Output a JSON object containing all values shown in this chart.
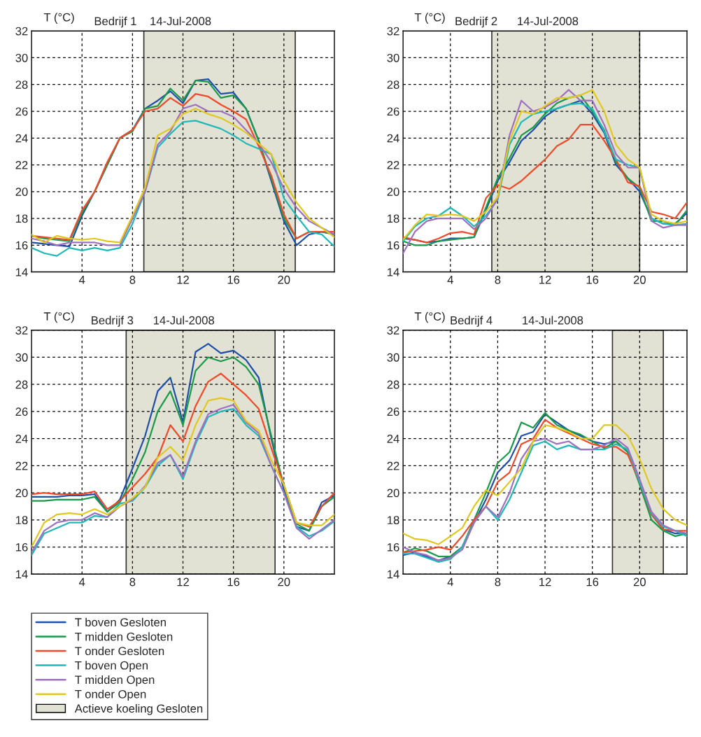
{
  "chart_data": [
    {
      "type": "line",
      "title": "Bedrijf 1    14-Jul-2008",
      "ylabel": "T (°C)",
      "x": [
        0,
        1,
        2,
        3,
        4,
        5,
        6,
        7,
        8,
        9,
        10,
        11,
        12,
        13,
        14,
        15,
        16,
        17,
        18,
        19,
        20,
        21,
        22,
        23,
        24
      ],
      "xlim": [
        0,
        24
      ],
      "ylim": [
        14,
        32
      ],
      "xticks": [
        4,
        8,
        12,
        16,
        20
      ],
      "yticks": [
        14,
        16,
        18,
        20,
        22,
        24,
        26,
        28,
        30,
        32
      ],
      "grid": true,
      "legend": "bottom",
      "marker": "none",
      "line_style": "solid",
      "bands": [
        {
          "axis": "x",
          "from": 8.9,
          "to": 20.9,
          "label": "Actieve koeling Gesloten",
          "color": "#e2e2d4"
        }
      ],
      "series": [
        {
          "name": "T boven Gesloten",
          "color": "#1f4fa8",
          "values": [
            16.2,
            16.1,
            16.0,
            15.9,
            18.2,
            20.0,
            22.0,
            24.0,
            24.6,
            26.2,
            26.8,
            27.5,
            26.6,
            28.3,
            28.4,
            27.3,
            27.4,
            26.2,
            23.8,
            20.8,
            17.8,
            16.0,
            16.8,
            17.0,
            16.8
          ]
        },
        {
          "name": "T midden Gesloten",
          "color": "#1a9a48",
          "values": [
            16.7,
            16.5,
            16.4,
            16.3,
            18.4,
            20.0,
            22.0,
            24.0,
            24.5,
            26.2,
            26.4,
            27.7,
            26.8,
            28.3,
            28.2,
            27.0,
            27.2,
            26.2,
            23.8,
            21.0,
            18.0,
            16.5,
            17.0,
            17.0,
            16.8
          ]
        },
        {
          "name": "T onder Gesloten",
          "color": "#f04a2a",
          "values": [
            16.7,
            16.6,
            16.5,
            16.4,
            18.6,
            20.0,
            22.2,
            24.0,
            24.6,
            26.0,
            26.2,
            27.0,
            26.4,
            27.3,
            27.1,
            26.5,
            26.0,
            25.4,
            23.4,
            21.2,
            18.3,
            16.5,
            17.0,
            17.0,
            17.0
          ]
        },
        {
          "name": "T boven Open",
          "color": "#20b8b8",
          "values": [
            15.8,
            15.4,
            15.2,
            15.8,
            15.6,
            15.8,
            15.6,
            15.8,
            17.6,
            20.0,
            23.3,
            24.3,
            25.2,
            25.3,
            25.0,
            24.7,
            24.2,
            23.6,
            23.2,
            22.8,
            19.5,
            18.2,
            17.0,
            16.8,
            15.9
          ]
        },
        {
          "name": "T midden Open",
          "color": "#a070c0",
          "values": [
            16.5,
            16.3,
            16.0,
            16.2,
            16.2,
            16.2,
            16.0,
            16.0,
            18.0,
            20.0,
            23.5,
            24.5,
            26.2,
            26.5,
            26.0,
            26.0,
            25.6,
            24.6,
            23.6,
            22.2,
            20.2,
            18.8,
            17.8,
            17.3,
            16.8
          ]
        },
        {
          "name": "T onder Open",
          "color": "#e0c820",
          "values": [
            16.8,
            16.2,
            16.7,
            16.5,
            16.4,
            16.5,
            16.3,
            16.2,
            18.2,
            20.3,
            24.2,
            24.7,
            25.8,
            26.2,
            25.8,
            25.5,
            25.0,
            24.4,
            23.6,
            22.8,
            20.8,
            19.2,
            18.0,
            17.3,
            16.6
          ]
        }
      ]
    },
    {
      "type": "line",
      "title": "Bedrijf 2      14-Jul-2008",
      "ylabel": "T (°C)",
      "x": [
        0,
        1,
        2,
        3,
        4,
        5,
        6,
        7,
        8,
        9,
        10,
        11,
        12,
        13,
        14,
        15,
        16,
        17,
        18,
        19,
        20,
        21,
        22,
        23,
        24
      ],
      "xlim": [
        0,
        24
      ],
      "ylim": [
        14,
        32
      ],
      "xticks": [
        4,
        8,
        12,
        16,
        20
      ],
      "yticks": [
        14,
        16,
        18,
        20,
        22,
        24,
        26,
        28,
        30,
        32
      ],
      "grid": true,
      "legend": false,
      "marker": "none",
      "line_style": "solid",
      "bands": [
        {
          "axis": "x",
          "from": 7.5,
          "to": 20,
          "color": "#e2e2d4"
        }
      ],
      "series": [
        {
          "color": "#1f4fa8",
          "values": [
            16.5,
            16.4,
            16.2,
            16.3,
            16.5,
            16.5,
            16.6,
            18.6,
            20.8,
            22.2,
            23.8,
            24.6,
            25.6,
            26.2,
            26.5,
            26.8,
            25.8,
            24.4,
            22.0,
            21.0,
            20.0,
            18.0,
            17.6,
            17.6,
            18.4
          ]
        },
        {
          "color": "#1a9a48",
          "values": [
            16.3,
            16.0,
            16.0,
            16.3,
            16.4,
            16.5,
            16.6,
            18.8,
            21.0,
            22.5,
            24.2,
            24.8,
            25.8,
            26.6,
            27.0,
            27.2,
            26.0,
            24.6,
            22.2,
            21.0,
            20.3,
            17.8,
            17.8,
            17.5,
            18.6
          ]
        },
        {
          "color": "#f04a2a",
          "values": [
            16.6,
            16.4,
            16.2,
            16.5,
            16.9,
            17.0,
            16.8,
            19.5,
            20.5,
            20.2,
            20.8,
            21.6,
            22.4,
            23.4,
            23.9,
            25.0,
            25.0,
            23.8,
            22.4,
            20.7,
            20.4,
            18.5,
            18.3,
            18.0,
            19.2
          ]
        },
        {
          "color": "#20b8b8",
          "values": [
            16.3,
            17.4,
            18.0,
            18.2,
            18.8,
            18.2,
            17.4,
            18.2,
            19.4,
            23.5,
            25.2,
            25.8,
            26.0,
            26.2,
            26.5,
            26.6,
            26.2,
            24.5,
            22.4,
            22.0,
            21.8,
            18.0,
            17.6,
            17.5,
            17.6
          ]
        },
        {
          "color": "#a070c0",
          "values": [
            15.4,
            17.0,
            17.8,
            18.0,
            18.0,
            18.0,
            17.2,
            18.0,
            19.5,
            24.2,
            26.8,
            26.0,
            26.3,
            26.8,
            27.6,
            26.8,
            26.8,
            25.0,
            22.8,
            21.8,
            21.8,
            17.8,
            17.3,
            17.5,
            17.5
          ]
        },
        {
          "color": "#e0c820",
          "values": [
            16.4,
            17.5,
            18.3,
            18.2,
            18.3,
            18.2,
            17.8,
            18.5,
            19.6,
            23.8,
            26.0,
            25.8,
            26.4,
            27.0,
            27.0,
            27.2,
            27.6,
            26.0,
            23.5,
            22.4,
            21.8,
            18.3,
            17.8,
            17.6,
            17.8
          ]
        }
      ]
    },
    {
      "type": "line",
      "title": "Bedrijf 3      14-Jul-2008",
      "ylabel": "T (°C)",
      "x": [
        0,
        1,
        2,
        3,
        4,
        5,
        6,
        7,
        8,
        9,
        10,
        11,
        12,
        13,
        14,
        15,
        16,
        17,
        18,
        19,
        20,
        21,
        22,
        23,
        24
      ],
      "xlim": [
        0,
        24
      ],
      "ylim": [
        14,
        32
      ],
      "xticks": [
        4,
        8,
        12,
        16,
        20
      ],
      "yticks": [
        14,
        16,
        18,
        20,
        22,
        24,
        26,
        28,
        30,
        32
      ],
      "grid": true,
      "legend": false,
      "marker": "none",
      "line_style": "solid",
      "bands": [
        {
          "axis": "x",
          "from": 7.5,
          "to": 19.3,
          "color": "#e2e2d4"
        }
      ],
      "series": [
        {
          "color": "#1f4fa8",
          "values": [
            19.7,
            19.7,
            19.7,
            19.8,
            19.8,
            19.9,
            18.6,
            19.5,
            21.8,
            24.2,
            27.5,
            28.5,
            25.2,
            30.4,
            31.0,
            30.3,
            30.5,
            29.8,
            28.5,
            24.0,
            20.2,
            17.5,
            17.2,
            19.3,
            19.8
          ]
        },
        {
          "color": "#1a9a48",
          "values": [
            19.4,
            19.4,
            19.5,
            19.5,
            19.5,
            19.7,
            18.6,
            19.3,
            21.0,
            23.0,
            26.0,
            27.5,
            25.0,
            29.0,
            30.0,
            29.7,
            30.0,
            29.3,
            28.0,
            24.2,
            20.5,
            17.7,
            17.2,
            19.0,
            19.7
          ]
        },
        {
          "color": "#f04a2a",
          "values": [
            19.9,
            20.0,
            19.9,
            19.9,
            19.9,
            20.1,
            18.8,
            19.4,
            20.4,
            21.4,
            22.6,
            25.0,
            23.8,
            26.4,
            28.2,
            28.8,
            28.0,
            27.2,
            26.2,
            23.3,
            20.6,
            17.8,
            17.5,
            19.0,
            20.0
          ]
        },
        {
          "color": "#20b8b8",
          "values": [
            15.4,
            17.0,
            17.4,
            17.8,
            17.8,
            18.3,
            18.2,
            19.2,
            19.4,
            20.4,
            22.0,
            22.8,
            21.0,
            23.6,
            25.6,
            26.0,
            26.2,
            25.0,
            24.2,
            22.0,
            20.0,
            17.5,
            16.8,
            17.2,
            17.9
          ]
        },
        {
          "color": "#a070c0",
          "values": [
            15.6,
            17.2,
            17.8,
            18.0,
            18.0,
            18.5,
            18.2,
            19.0,
            19.5,
            20.5,
            22.2,
            22.8,
            21.2,
            23.8,
            25.8,
            26.2,
            26.5,
            25.2,
            24.4,
            22.0,
            20.0,
            17.4,
            16.6,
            17.3,
            18.0
          ]
        },
        {
          "color": "#e0c820",
          "values": [
            16.0,
            17.8,
            18.4,
            18.5,
            18.4,
            18.8,
            18.4,
            19.0,
            19.6,
            20.4,
            22.6,
            23.4,
            22.4,
            25.0,
            26.8,
            27.0,
            26.8,
            25.3,
            24.6,
            22.4,
            20.6,
            17.8,
            17.6,
            17.6,
            18.4
          ]
        }
      ]
    },
    {
      "type": "line",
      "title": "Bedrijf 4         14-Jul-2008",
      "ylabel": "T (°C)",
      "x": [
        0,
        1,
        2,
        3,
        4,
        5,
        6,
        7,
        8,
        9,
        10,
        11,
        12,
        13,
        14,
        15,
        16,
        17,
        18,
        19,
        20,
        21,
        22,
        23,
        24
      ],
      "xlim": [
        0,
        24
      ],
      "ylim": [
        14,
        32
      ],
      "xticks": [
        4,
        8,
        12,
        16,
        20
      ],
      "yticks": [
        14,
        16,
        18,
        20,
        22,
        24,
        26,
        28,
        30,
        32
      ],
      "grid": true,
      "legend": false,
      "marker": "none",
      "line_style": "solid",
      "bands": [
        {
          "axis": "x",
          "from": 17.7,
          "to": 22,
          "color": "#e2e2d4"
        }
      ],
      "series": [
        {
          "color": "#1f4fa8",
          "values": [
            15.4,
            15.6,
            15.3,
            15.0,
            15.3,
            16.0,
            17.8,
            19.5,
            21.5,
            22.4,
            24.2,
            24.5,
            25.8,
            25.2,
            24.6,
            24.2,
            23.8,
            23.6,
            23.8,
            23.0,
            20.8,
            18.4,
            17.3,
            17.0,
            17.0
          ]
        },
        {
          "color": "#1a9a48",
          "values": [
            15.6,
            15.9,
            15.7,
            15.3,
            15.3,
            16.0,
            18.0,
            20.0,
            22.2,
            23.0,
            25.2,
            24.8,
            25.9,
            25.0,
            24.6,
            24.3,
            23.8,
            23.3,
            23.8,
            23.0,
            20.6,
            18.0,
            17.2,
            16.8,
            17.0
          ]
        },
        {
          "color": "#f04a2a",
          "values": [
            15.6,
            15.7,
            15.8,
            16.0,
            15.8,
            16.8,
            18.0,
            19.0,
            20.8,
            21.5,
            23.6,
            24.0,
            25.4,
            24.8,
            24.4,
            24.0,
            23.6,
            23.4,
            23.4,
            22.8,
            20.8,
            18.4,
            17.3,
            17.2,
            17.2
          ]
        },
        {
          "color": "#20b8b8",
          "values": [
            15.5,
            15.5,
            15.2,
            14.9,
            15.1,
            16.0,
            17.8,
            19.0,
            18.0,
            19.5,
            21.5,
            23.5,
            23.8,
            23.2,
            23.5,
            23.2,
            23.2,
            23.2,
            23.6,
            23.2,
            20.8,
            18.5,
            17.5,
            17.2,
            16.8
          ]
        },
        {
          "color": "#a070c0",
          "values": [
            16.0,
            15.6,
            15.4,
            15.0,
            15.2,
            15.8,
            17.8,
            19.0,
            18.2,
            20.0,
            22.5,
            23.8,
            24.0,
            23.6,
            23.8,
            23.2,
            23.2,
            23.5,
            24.0,
            23.3,
            21.0,
            18.6,
            17.6,
            17.2,
            17.0
          ]
        },
        {
          "color": "#e0c820",
          "values": [
            17.0,
            16.6,
            16.5,
            16.2,
            16.8,
            17.4,
            19.0,
            20.2,
            19.8,
            20.8,
            21.8,
            23.8,
            25.0,
            24.8,
            24.5,
            24.0,
            24.0,
            25.0,
            25.0,
            24.2,
            22.5,
            20.3,
            18.8,
            18.0,
            17.6
          ]
        }
      ]
    }
  ]
}
